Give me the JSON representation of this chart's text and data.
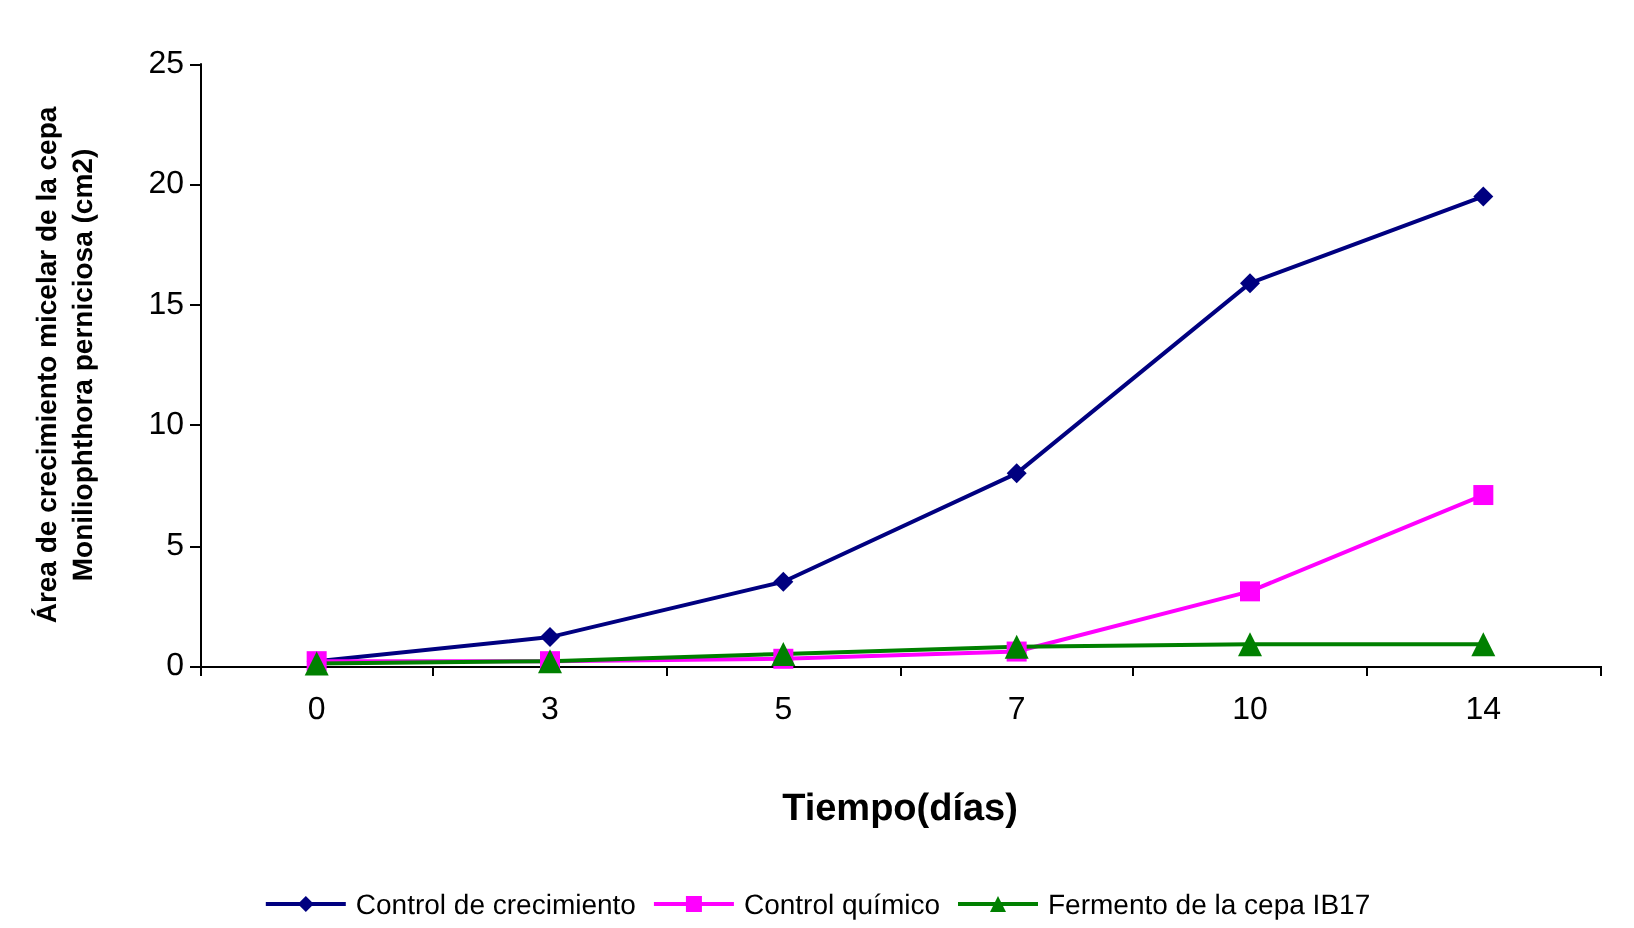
{
  "chart_data": {
    "type": "line",
    "xlabel": "Tiempo(días)",
    "ylabel": "Área de crecimiento micelar de la cepa\nMoniliophthora perniciosa (cm2)",
    "categories": [
      "0",
      "3",
      "5",
      "7",
      "10",
      "14"
    ],
    "series": [
      {
        "name": "Control de crecimiento",
        "color": "#000080",
        "marker": "diamond",
        "values": [
          0.2,
          1.2,
          3.5,
          8.0,
          15.9,
          19.5
        ]
      },
      {
        "name": "Control químico",
        "color": "#ff00ff",
        "marker": "square",
        "values": [
          0.2,
          0.2,
          0.3,
          0.6,
          3.1,
          7.1
        ]
      },
      {
        "name": "Fermento de la cepa IB17",
        "color": "#008000",
        "marker": "triangle",
        "values": [
          0.1,
          0.2,
          0.5,
          0.8,
          0.9,
          0.9
        ]
      }
    ],
    "ylim": [
      0,
      25
    ],
    "yticks": [
      0,
      5,
      10,
      15,
      20,
      25
    ],
    "grid": false,
    "legend": "bottom"
  }
}
